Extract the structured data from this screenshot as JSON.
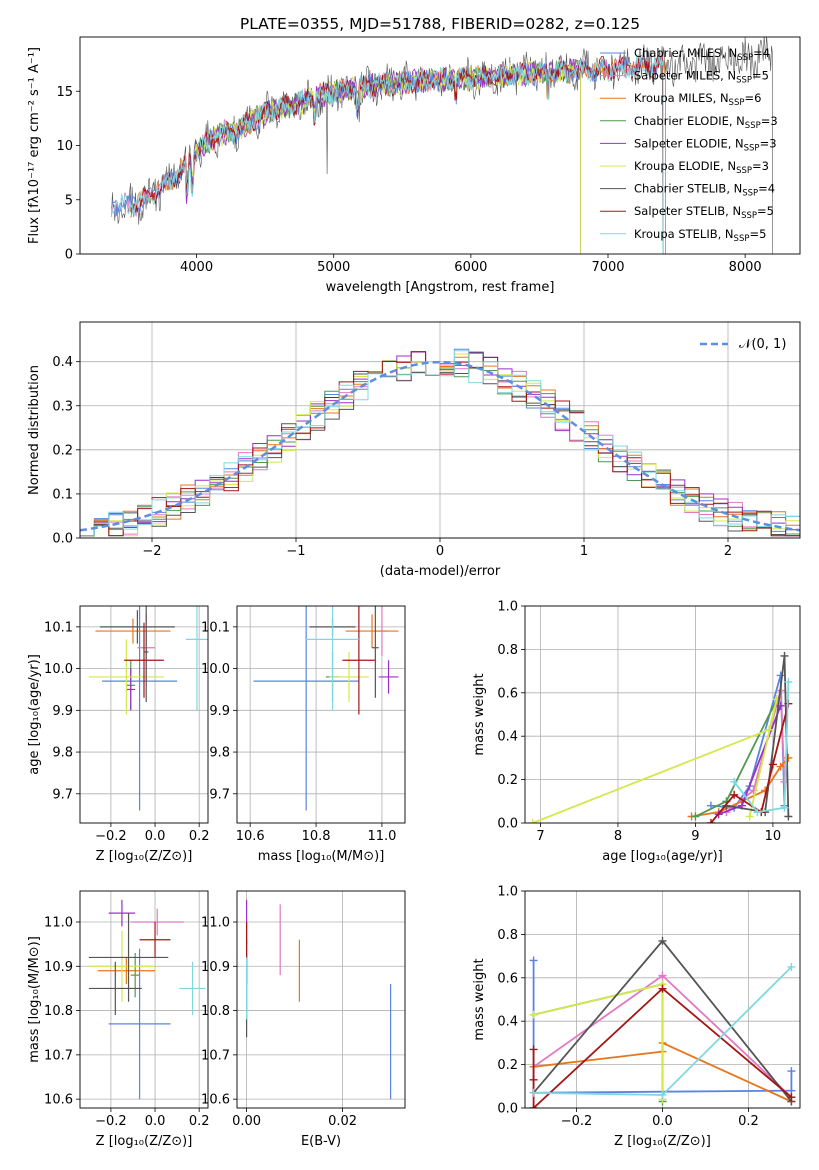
{
  "figure_title": "PLATE=0355, MJD=51788, FIBERID=0282, z=0.125",
  "colors": {
    "chabrier_miles": "#5b84e0",
    "salpeter_miles": "#e377c2",
    "kroupa_miles": "#e8761c",
    "chabrier_elodie": "#4e9a4e",
    "salpeter_elodie": "#9b30c9",
    "kroupa_elodie": "#d4e84a",
    "chabrier_stelib": "#555555",
    "salpeter_stelib": "#a51515",
    "kroupa_stelib": "#7fd8df",
    "normal_curve": "#5b8fe0",
    "grid": "#b0b0b0"
  },
  "chart_data": [
    {
      "id": "spectrum",
      "type": "line",
      "xlabel": "wavelength [Angstrom, rest frame]",
      "ylabel": "Flux [fλ10⁻¹⁷ erg cm⁻² s⁻¹ A⁻¹]",
      "xlim": [
        3150,
        8400
      ],
      "ylim": [
        0,
        20
      ],
      "xticks": [
        "4000",
        "5000",
        "6000",
        "7000",
        "8000"
      ],
      "xtick_values": [
        4000,
        5000,
        6000,
        7000,
        8000
      ],
      "yticks": [
        "0",
        "5",
        "10",
        "15"
      ],
      "ytick_values": [
        0,
        5,
        10,
        15
      ],
      "grid": false,
      "legend_position": "top-right",
      "continuum": {
        "wavelength": [
          3380,
          3500,
          3600,
          3700,
          3800,
          3900,
          4000,
          4100,
          4200,
          4300,
          4400,
          4500,
          4600,
          4700,
          4800,
          4900,
          5000,
          5200,
          5400,
          5600,
          5800,
          6000,
          6200,
          6400,
          6600,
          6800,
          7000,
          7200,
          7400,
          7600,
          7800,
          8000,
          8200
        ],
        "flux": [
          4.6,
          4.4,
          4.9,
          5.7,
          6.7,
          7.9,
          9.4,
          10.5,
          11.2,
          11.4,
          12.3,
          13.0,
          13.4,
          13.7,
          14.2,
          14.6,
          14.9,
          15.4,
          15.7,
          15.9,
          16.1,
          16.2,
          16.4,
          16.6,
          16.8,
          16.9,
          17.1,
          17.3,
          17.4,
          17.6,
          17.8,
          18.1,
          18.3
        ]
      },
      "series": [
        {
          "name": "Chabrier MILES, N_SSP=4",
          "label_text": "Chabrier MILES, N",
          "label_sub": "SSP",
          "label_tail": "=4",
          "color_key": "chabrier_miles",
          "x_range": [
            3380,
            7400
          ]
        },
        {
          "name": "Salpeter MILES, N_SSP=5",
          "label_text": "Salpeter MILES, N",
          "label_sub": "SSP",
          "label_tail": "=5",
          "color_key": "salpeter_miles",
          "x_range": [
            3380,
            7400
          ]
        },
        {
          "name": "Kroupa MILES, N_SSP=6",
          "label_text": "Kroupa MILES, N",
          "label_sub": "SSP",
          "label_tail": "=6",
          "color_key": "kroupa_miles",
          "x_range": [
            3520,
            7420
          ]
        },
        {
          "name": "Chabrier ELODIE, N_SSP=3",
          "label_text": "Chabrier ELODIE, N",
          "label_sub": "SSP",
          "label_tail": "=3",
          "color_key": "chabrier_elodie",
          "x_range": [
            3920,
            6800
          ]
        },
        {
          "name": "Salpeter ELODIE, N_SSP=3",
          "label_text": "Salpeter ELODIE, N",
          "label_sub": "SSP",
          "label_tail": "=3",
          "color_key": "salpeter_elodie",
          "x_range": [
            3920,
            6800
          ]
        },
        {
          "name": "Kroupa ELODIE, N_SSP=3",
          "label_text": "Kroupa ELODIE, N",
          "label_sub": "SSP",
          "label_tail": "=3",
          "color_key": "kroupa_elodie",
          "x_range": [
            3920,
            6800
          ]
        },
        {
          "name": "Chabrier STELIB, N_SSP=4",
          "label_text": "Chabrier STELIB, N",
          "label_sub": "SSP",
          "label_tail": "=4",
          "color_key": "chabrier_stelib",
          "x_range": [
            3380,
            8200
          ]
        },
        {
          "name": "Salpeter STELIB, N_SSP=5",
          "label_text": "Salpeter STELIB, N",
          "label_sub": "SSP",
          "label_tail": "=5",
          "color_key": "salpeter_stelib",
          "x_range": [
            3520,
            7400
          ]
        },
        {
          "name": "Kroupa STELIB, N_SSP=5",
          "label_text": "Kroupa STELIB, N",
          "label_sub": "SSP",
          "label_tail": "=5",
          "color_key": "kroupa_stelib",
          "x_range": [
            3380,
            7400
          ]
        }
      ]
    },
    {
      "id": "residuals",
      "type": "line",
      "xlabel": "(data-model)/error",
      "ylabel": "Normed distribution",
      "xlim": [
        -2.5,
        2.5
      ],
      "ylim": [
        0,
        0.49
      ],
      "xticks": [
        "−2",
        "−1",
        "0",
        "1",
        "2"
      ],
      "xtick_values": [
        -2,
        -1,
        0,
        1,
        2
      ],
      "yticks": [
        "0.0",
        "0.1",
        "0.2",
        "0.3",
        "0.4"
      ],
      "ytick_values": [
        0,
        0.1,
        0.2,
        0.3,
        0.4
      ],
      "grid": true,
      "legend_position": "top-right",
      "legend": "𝒩(0, 1)",
      "histogram": {
        "bin_start": -2.5,
        "bin_width": 0.1,
        "bins": 50
      },
      "normal_curve": {
        "mean": 0,
        "sigma": 1,
        "style": "dashed"
      }
    },
    {
      "id": "age_vs_Z",
      "type": "scatter",
      "xlabel": "Z [log₁₀(Z/Z⊙)]",
      "ylabel": "age  [log₁₀(age/yr)]",
      "xlim": [
        -0.34,
        0.24
      ],
      "ylim": [
        9.63,
        10.15
      ],
      "xticks": [
        "−0.2",
        "0.0",
        "0.2"
      ],
      "xtick_values": [
        -0.2,
        0,
        0.2
      ],
      "yticks": [
        "9.7",
        "9.8",
        "9.9",
        "10.0",
        "10.1"
      ],
      "ytick_values": [
        9.7,
        9.8,
        9.9,
        10.0,
        10.1
      ],
      "grid": true,
      "points": [
        {
          "color_key": "chabrier_miles",
          "x": -0.07,
          "y": 9.97,
          "xerr": 0.17,
          "yerr": 0.31
        },
        {
          "color_key": "salpeter_miles",
          "x": -0.04,
          "y": 10.05,
          "xerr": 0.04,
          "yerr": 0.08
        },
        {
          "color_key": "kroupa_miles",
          "x": -0.1,
          "y": 10.09,
          "xerr": 0.17,
          "yerr": 0.03
        },
        {
          "color_key": "chabrier_elodie",
          "x": -0.11,
          "y": 9.96,
          "xerr": 0.02,
          "yerr": 0.06
        },
        {
          "color_key": "salpeter_elodie",
          "x": -0.11,
          "y": 9.95,
          "xerr": 0.02,
          "yerr": 0.05
        },
        {
          "color_key": "kroupa_elodie",
          "x": -0.13,
          "y": 9.98,
          "xerr": 0.17,
          "yerr": 0.09
        },
        {
          "color_key": "chabrier_stelib",
          "x": -0.08,
          "y": 10.1,
          "xerr": 0.17,
          "yerr": 0.04
        },
        {
          "color_key": "salpeter_stelib",
          "x": -0.05,
          "y": 10.02,
          "xerr": 0.09,
          "yerr": 0.09
        },
        {
          "color_key": "kroupa_stelib",
          "x": 0.19,
          "y": 10.07,
          "xerr": 0.05,
          "yerr": 0.17
        },
        {
          "color_key": "chabrier_stelib",
          "x": -0.04,
          "y": 10.04,
          "xerr": 0.01,
          "yerr": 0.12
        }
      ]
    },
    {
      "id": "age_vs_mass",
      "type": "scatter",
      "xlabel": "mass [log₁₀(M/M⊙)]",
      "ylabel": "",
      "xlim": [
        10.56,
        11.07
      ],
      "ylim": [
        9.63,
        10.15
      ],
      "xticks": [
        "10.6",
        "10.8",
        "11.0"
      ],
      "xtick_values": [
        10.6,
        10.8,
        11.0
      ],
      "yticks": [
        "9.7",
        "9.8",
        "9.9",
        "10.0",
        "10.1"
      ],
      "ytick_values": [
        9.7,
        9.8,
        9.9,
        10.0,
        10.1
      ],
      "grid": true,
      "points": [
        {
          "color_key": "chabrier_miles",
          "x": 10.77,
          "y": 9.97,
          "xerr": 0.16,
          "yerr": 0.31
        },
        {
          "color_key": "salpeter_miles",
          "x": 11.0,
          "y": 10.09,
          "xerr": 0.02,
          "yerr": 0.06
        },
        {
          "color_key": "kroupa_miles",
          "x": 10.97,
          "y": 10.09,
          "xerr": 0.08,
          "yerr": 0.04
        },
        {
          "color_key": "chabrier_elodie",
          "x": 10.85,
          "y": 9.98,
          "xerr": 0.02,
          "yerr": 0.06
        },
        {
          "color_key": "salpeter_elodie",
          "x": 11.02,
          "y": 9.98,
          "xerr": 0.03,
          "yerr": 0.04
        },
        {
          "color_key": "kroupa_elodie",
          "x": 10.9,
          "y": 9.98,
          "xerr": 0.06,
          "yerr": 0.06
        },
        {
          "color_key": "chabrier_stelib",
          "x": 10.85,
          "y": 10.1,
          "xerr": 0.07,
          "yerr": 0.02
        },
        {
          "color_key": "salpeter_stelib",
          "x": 10.93,
          "y": 10.02,
          "xerr": 0.05,
          "yerr": 0.13
        },
        {
          "color_key": "kroupa_stelib",
          "x": 10.85,
          "y": 10.07,
          "xerr": 0.08,
          "yerr": 0.17
        },
        {
          "color_key": "chabrier_stelib",
          "x": 10.98,
          "y": 10.05,
          "xerr": 0.01,
          "yerr": 0.12
        }
      ]
    },
    {
      "id": "weight_vs_age",
      "type": "line",
      "xlabel": "age  [log₁₀(age/yr)]",
      "ylabel": "mass weight",
      "xlim": [
        6.8,
        10.35
      ],
      "ylim": [
        0,
        1
      ],
      "xticks": [
        "7",
        "8",
        "9",
        "10"
      ],
      "xtick_values": [
        7,
        8,
        9,
        10
      ],
      "yticks": [
        "0.0",
        "0.2",
        "0.4",
        "0.6",
        "0.8",
        "1.0"
      ],
      "ytick_values": [
        0,
        0.2,
        0.4,
        0.6,
        0.8,
        1.0
      ],
      "grid": true,
      "series": [
        {
          "color_key": "chabrier_miles",
          "x": [
            9.2,
            9.5,
            9.7,
            10.1,
            10.15
          ],
          "y": [
            0.08,
            0.07,
            0.17,
            0.68,
            0.08
          ]
        },
        {
          "color_key": "salpeter_miles",
          "x": [
            9.4,
            9.75,
            10.1,
            10.15
          ],
          "y": [
            0.05,
            0.15,
            0.61,
            0.19
          ]
        },
        {
          "color_key": "kroupa_miles",
          "x": [
            8.95,
            9.3,
            9.9,
            10.1,
            10.2
          ],
          "y": [
            0.03,
            0.05,
            0.15,
            0.26,
            0.3
          ]
        },
        {
          "color_key": "chabrier_elodie",
          "x": [
            9.0,
            9.4,
            10.05
          ],
          "y": [
            0.03,
            0.1,
            0.57
          ]
        },
        {
          "color_key": "salpeter_elodie",
          "x": [
            9.3,
            9.6,
            10.1
          ],
          "y": [
            0.04,
            0.08,
            0.54
          ]
        },
        {
          "color_key": "kroupa_elodie",
          "x": [
            6.9,
            9.95,
            10.05,
            9.7
          ],
          "y": [
            0.0,
            0.43,
            0.57,
            0.03
          ]
        },
        {
          "color_key": "chabrier_stelib",
          "x": [
            9.4,
            9.9,
            10.15,
            10.2
          ],
          "y": [
            0.08,
            0.05,
            0.77,
            0.03
          ]
        },
        {
          "color_key": "salpeter_stelib",
          "x": [
            9.2,
            9.5,
            9.85,
            10.0,
            10.2
          ],
          "y": [
            0.0,
            0.13,
            0.05,
            0.27,
            0.55
          ]
        },
        {
          "color_key": "kroupa_stelib",
          "x": [
            9.5,
            9.8,
            10.15,
            10.2
          ],
          "y": [
            0.19,
            0.05,
            0.07,
            0.65
          ]
        }
      ]
    },
    {
      "id": "mass_vs_Z",
      "type": "scatter",
      "xlabel": "Z [log₁₀(Z/Z⊙)]",
      "ylabel": "mass [log₁₀(M/M⊙)]",
      "xlim": [
        -0.34,
        0.24
      ],
      "ylim": [
        10.58,
        11.07
      ],
      "xticks": [
        "−0.2",
        "0.0",
        "0.2"
      ],
      "xtick_values": [
        -0.2,
        0,
        0.2
      ],
      "yticks": [
        "10.6",
        "10.7",
        "10.8",
        "10.9",
        "11.0"
      ],
      "ytick_values": [
        10.6,
        10.7,
        10.8,
        10.9,
        11.0
      ],
      "grid": true,
      "points": [
        {
          "color_key": "chabrier_miles",
          "x": -0.07,
          "y": 10.77,
          "xerr": 0.14,
          "yerr": 0.17
        },
        {
          "color_key": "salpeter_miles",
          "x": 0.01,
          "y": 11.0,
          "xerr": 0.12,
          "yerr": 0.03
        },
        {
          "color_key": "kroupa_miles",
          "x": -0.13,
          "y": 10.89,
          "xerr": 0.13,
          "yerr": 0.03
        },
        {
          "color_key": "chabrier_elodie",
          "x": -0.09,
          "y": 10.88,
          "xerr": 0.02,
          "yerr": 0.05
        },
        {
          "color_key": "salpeter_elodie",
          "x": -0.15,
          "y": 11.02,
          "xerr": 0.06,
          "yerr": 0.03
        },
        {
          "color_key": "kroupa_elodie",
          "x": -0.15,
          "y": 10.9,
          "xerr": 0.15,
          "yerr": 0.08
        },
        {
          "color_key": "chabrier_stelib",
          "x": -0.18,
          "y": 10.85,
          "xerr": 0.12,
          "yerr": 0.06
        },
        {
          "color_key": "salpeter_stelib",
          "x": 0.0,
          "y": 10.96,
          "xerr": 0.07,
          "yerr": 0.04
        },
        {
          "color_key": "kroupa_stelib",
          "x": 0.17,
          "y": 10.85,
          "xerr": 0.06,
          "yerr": 0.06
        },
        {
          "color_key": "chabrier_stelib",
          "x": -0.12,
          "y": 10.92,
          "xerr": 0.18,
          "yerr": 0.1
        }
      ]
    },
    {
      "id": "mass_vs_ebv",
      "type": "scatter",
      "xlabel": "E(B-V)",
      "ylabel": "",
      "xlim": [
        -0.002,
        0.033
      ],
      "ylim": [
        10.58,
        11.07
      ],
      "xticks": [
        "0.00",
        "0.02"
      ],
      "xtick_values": [
        0,
        0.02
      ],
      "yticks": [
        "10.6",
        "10.7",
        "10.8",
        "10.9",
        "11.0"
      ],
      "ytick_values": [
        10.6,
        10.7,
        10.8,
        10.9,
        11.0
      ],
      "grid": true,
      "points": [
        {
          "color_key": "chabrier_miles",
          "x": 0.03,
          "y": 10.73,
          "xerr": 0.0,
          "yerr": 0.13
        },
        {
          "color_key": "salpeter_miles",
          "x": 0.007,
          "y": 10.96,
          "xerr": 0.0,
          "yerr": 0.08
        },
        {
          "color_key": "kroupa_miles",
          "x": 0.011,
          "y": 10.89,
          "xerr": 0.0,
          "yerr": 0.07
        },
        {
          "color_key": "salpeter_elodie",
          "x": 0.0,
          "y": 11.0,
          "xerr": 0.0,
          "yerr": 0.05
        },
        {
          "color_key": "chabrier_stelib",
          "x": 0.0,
          "y": 10.85,
          "xerr": 0.0,
          "yerr": 0.11
        },
        {
          "color_key": "salpeter_stelib",
          "x": 0.0,
          "y": 10.93,
          "xerr": 0.0,
          "yerr": 0.07
        },
        {
          "color_key": "kroupa_stelib",
          "x": 0.0,
          "y": 10.85,
          "xerr": 0.0,
          "yerr": 0.07
        }
      ]
    },
    {
      "id": "weight_vs_Z",
      "type": "line",
      "xlabel": "Z [log₁₀(Z/Z⊙)]",
      "ylabel": "mass weight",
      "xlim": [
        -0.32,
        0.32
      ],
      "ylim": [
        0,
        1
      ],
      "xticks": [
        "−0.2",
        "0.0",
        "0.2"
      ],
      "xtick_values": [
        -0.2,
        0,
        0.2
      ],
      "yticks": [
        "0.0",
        "0.2",
        "0.4",
        "0.6",
        "0.8",
        "1.0"
      ],
      "ytick_values": [
        0,
        0.2,
        0.4,
        0.6,
        0.8,
        1.0
      ],
      "grid": true,
      "series": [
        {
          "color_key": "chabrier_miles",
          "x": [
            -0.3,
            -0.3,
            -0.3,
            0.0,
            0.3,
            0.3
          ],
          "y": [
            0.68,
            0.43,
            0.07,
            0.075,
            0.08,
            0.17
          ]
        },
        {
          "color_key": "salpeter_miles",
          "x": [
            -0.3,
            0.0,
            0.3
          ],
          "y": [
            0.19,
            0.61,
            0.05
          ]
        },
        {
          "color_key": "kroupa_miles",
          "x": [
            -0.3,
            0.0,
            0.0,
            0.3
          ],
          "y": [
            0.19,
            0.26,
            0.3,
            0.03
          ]
        },
        {
          "color_key": "chabrier_elodie",
          "x": [
            -0.3,
            0.0,
            0.0
          ],
          "y": [
            0.43,
            0.57,
            0.03
          ]
        },
        {
          "color_key": "kroupa_elodie",
          "x": [
            -0.3,
            0.0,
            0.0
          ],
          "y": [
            0.43,
            0.57,
            0.04
          ]
        },
        {
          "color_key": "chabrier_stelib",
          "x": [
            -0.3,
            0.0,
            0.3
          ],
          "y": [
            0.07,
            0.77,
            0.03
          ]
        },
        {
          "color_key": "salpeter_stelib",
          "x": [
            -0.3,
            -0.3,
            -0.3,
            0.0,
            0.3
          ],
          "y": [
            0.27,
            0.13,
            0.0,
            0.55,
            0.05
          ]
        },
        {
          "color_key": "kroupa_stelib",
          "x": [
            -0.3,
            0.0,
            0.3
          ],
          "y": [
            0.07,
            0.06,
            0.65
          ]
        }
      ]
    }
  ]
}
